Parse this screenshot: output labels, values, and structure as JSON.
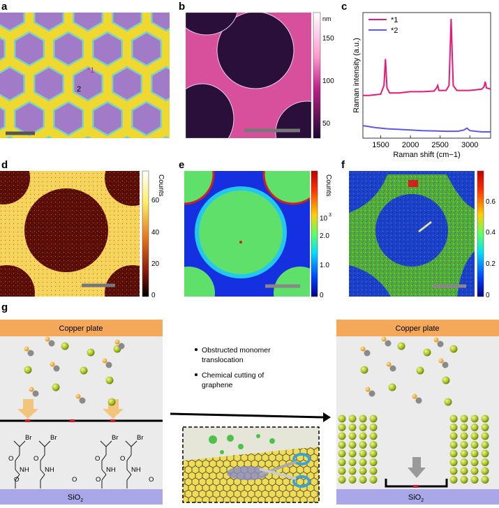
{
  "panel_labels": [
    "a",
    "b",
    "c",
    "d",
    "e",
    "f",
    "g"
  ],
  "panel_a": {
    "point_labels": [
      "*1",
      "2"
    ]
  },
  "panel_b": {
    "colorbar_unit": "nm",
    "colorbar_ticks": [
      "150",
      "100",
      "50"
    ]
  },
  "panel_d": {
    "colorbar_label": "Counts",
    "colorbar_ticks": [
      "60",
      "40",
      "20",
      "0"
    ]
  },
  "panel_e": {
    "colorbar_label": "Counts",
    "colorbar_ticks": [
      "10",
      "3",
      "2.0",
      "1.0",
      "0"
    ]
  },
  "panel_f": {
    "colorbar_ticks": [
      "0.6",
      "0.4",
      "0.2",
      "0"
    ]
  },
  "chart_data": {
    "type": "line",
    "xlabel": "Raman shift (cm−1)",
    "ylabel": "Raman intensity (a.u.)",
    "xlim": [
      1200,
      3350
    ],
    "ylim": [
      0,
      1
    ],
    "x_ticks": [
      "1500",
      "2000",
      "2500",
      "3000"
    ],
    "legend_position": "top-left",
    "colors": {
      "*1": "#e6197a",
      "*2": "#5a5ae6"
    },
    "series": [
      {
        "name": "*1",
        "x": [
          1200,
          1300,
          1400,
          1500,
          1555,
          1580,
          1605,
          1650,
          1800,
          2000,
          2200,
          2400,
          2440,
          2460,
          2480,
          2600,
          2650,
          2685,
          2720,
          2780,
          2900,
          3000,
          3200,
          3240,
          3260,
          3280,
          3350
        ],
        "y": [
          0.34,
          0.34,
          0.345,
          0.35,
          0.42,
          0.63,
          0.4,
          0.36,
          0.36,
          0.37,
          0.37,
          0.375,
          0.4,
          0.42,
          0.38,
          0.38,
          0.42,
          0.95,
          0.42,
          0.38,
          0.38,
          0.38,
          0.39,
          0.41,
          0.45,
          0.4,
          0.39
        ]
      },
      {
        "name": "*2",
        "x": [
          1200,
          1400,
          1600,
          1800,
          2000,
          2200,
          2400,
          2600,
          2800,
          2900,
          2950,
          3000,
          3200,
          3350
        ],
        "y": [
          0.1,
          0.085,
          0.075,
          0.07,
          0.065,
          0.06,
          0.058,
          0.055,
          0.055,
          0.065,
          0.08,
          0.06,
          0.05,
          0.05
        ]
      }
    ]
  },
  "panel_g": {
    "left": {
      "copper_label": "Copper plate",
      "substrate_label": "SiO",
      "substrate_sub": "2"
    },
    "right": {
      "copper_label": "Copper plate",
      "substrate_label": "SiO",
      "substrate_sub": "2"
    },
    "bullets": [
      "Obstructed monomer translocation",
      "Chemical cutting of graphene"
    ],
    "bullet_lines": [
      "Obstructed monomer",
      "translocation",
      "Chemical cutting of",
      "graphene"
    ]
  }
}
